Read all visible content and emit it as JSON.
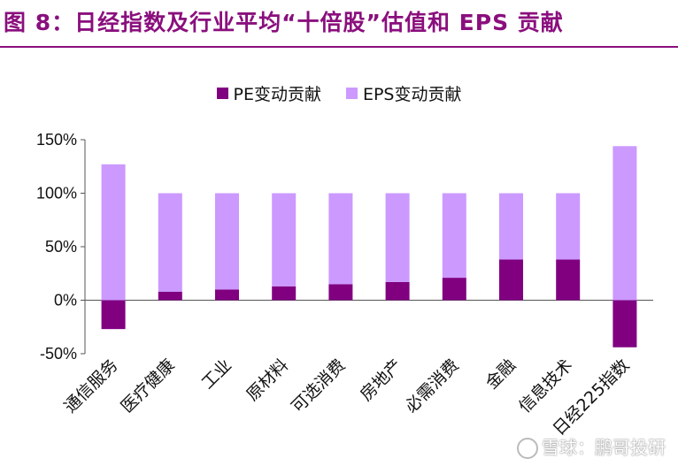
{
  "header": {
    "title": "图 8：日经指数及行业平均“十倍股”估值和 EPS 贡献"
  },
  "watermark": "雪球：鹏哥投研",
  "colors": {
    "title": "#8a0f7d",
    "pe": "#800080",
    "eps": "#cc99ff"
  },
  "chart_data": {
    "type": "bar",
    "stacked": true,
    "categories": [
      "通信服务",
      "医疗健康",
      "工业",
      "原材料",
      "可选消费",
      "房地产",
      "必需消费",
      "金融",
      "信息技术",
      "日经225指数"
    ],
    "series": [
      {
        "name": "PE变动贡献",
        "values": [
          -27,
          8,
          10,
          13,
          15,
          17,
          21,
          38,
          38,
          -44
        ]
      },
      {
        "name": "EPS变动贡献",
        "values": [
          127,
          92,
          90,
          87,
          85,
          83,
          79,
          62,
          62,
          144
        ]
      }
    ],
    "yticks": [
      "-50%",
      "0%",
      "50%",
      "100%",
      "150%"
    ],
    "ylim": [
      -50,
      150
    ],
    "legend_position": "top-center",
    "grid": false
  }
}
